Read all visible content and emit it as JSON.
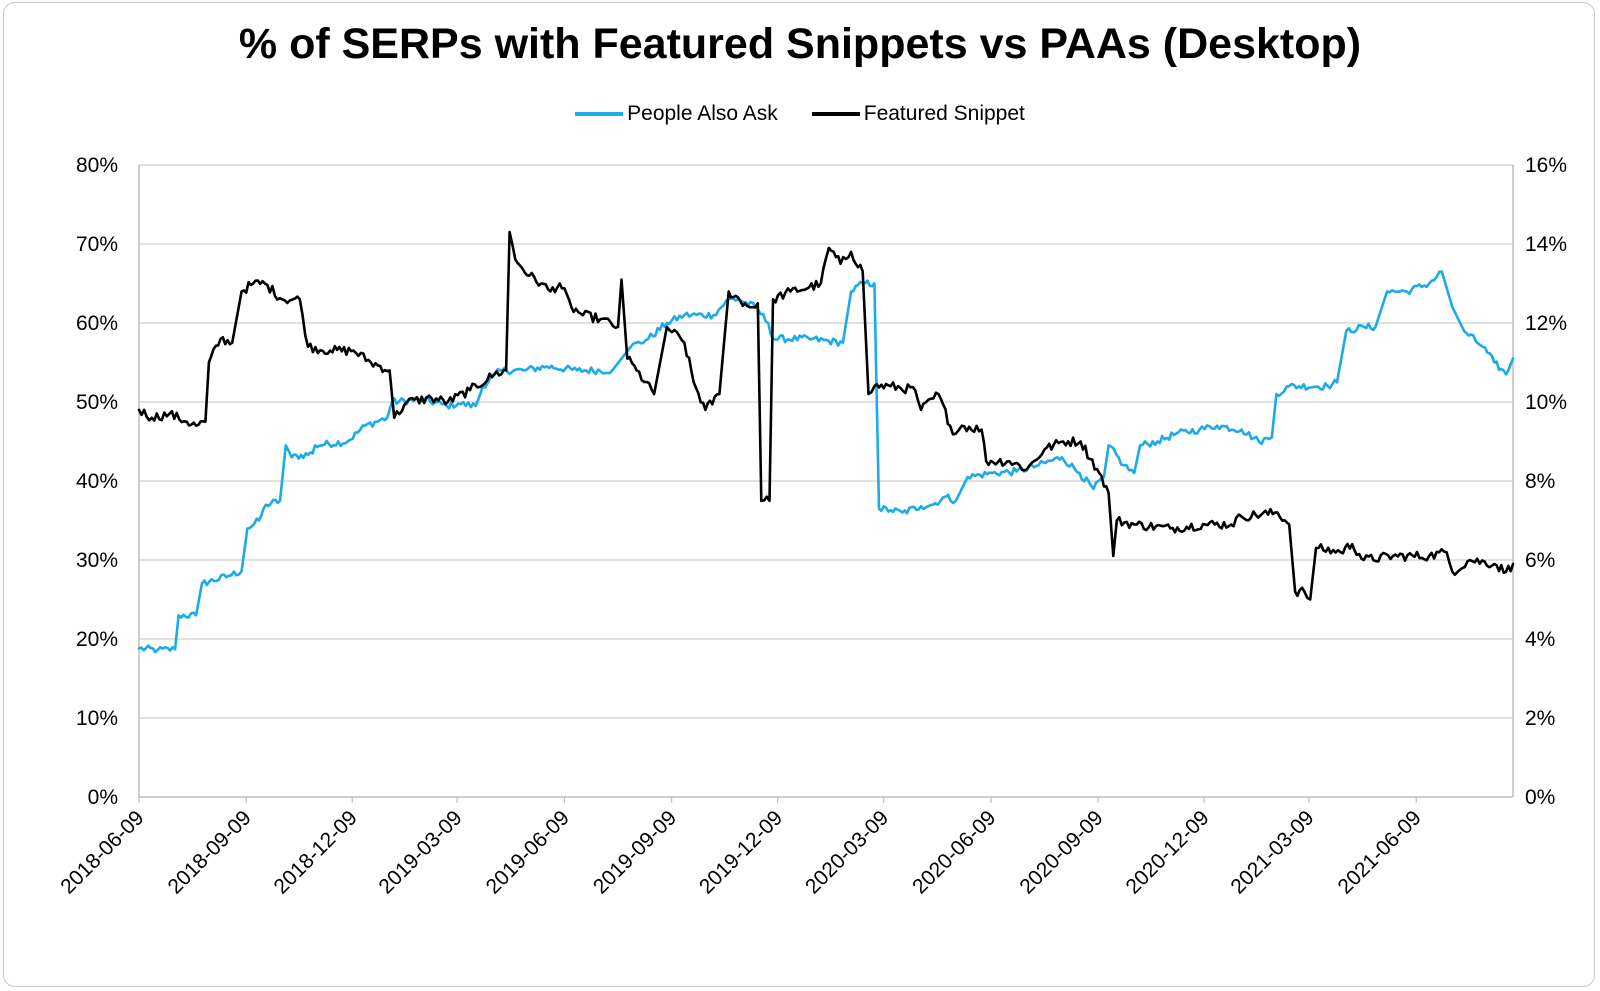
{
  "chart_data": {
    "type": "line",
    "title": "% of SERPs with Featured Snippets vs PAAs (Desktop)",
    "x_start": "2018-06-09",
    "x_end": "2021-08-31",
    "x_tick_labels": [
      "2018-06-09",
      "2018-09-09",
      "2018-12-09",
      "2019-03-09",
      "2019-06-09",
      "2019-09-09",
      "2019-12-09",
      "2020-03-09",
      "2020-06-09",
      "2020-09-09",
      "2020-12-09",
      "2021-03-09",
      "2021-06-09"
    ],
    "y_left": {
      "min": 0,
      "max": 80,
      "step": 10,
      "tick_labels": [
        "0%",
        "10%",
        "20%",
        "30%",
        "40%",
        "50%",
        "60%",
        "70%",
        "80%"
      ]
    },
    "y_right": {
      "min": 0,
      "max": 16,
      "step": 2,
      "tick_labels": [
        "0%",
        "2%",
        "4%",
        "6%",
        "8%",
        "10%",
        "12%",
        "14%",
        "16%"
      ]
    },
    "grid": true,
    "legend_position": "top-center",
    "series": [
      {
        "name": "People Also Ask",
        "axis": "left",
        "color": "#1aabe8",
        "points": [
          [
            "2018-06-09",
            18.8
          ],
          [
            "2018-06-25",
            18.6
          ],
          [
            "2018-07-10",
            18.7
          ],
          [
            "2018-07-13",
            23
          ],
          [
            "2018-07-28",
            23
          ],
          [
            "2018-08-02",
            27
          ],
          [
            "2018-08-25",
            28
          ],
          [
            "2018-09-05",
            28.6
          ],
          [
            "2018-09-10",
            34
          ],
          [
            "2018-09-20",
            35
          ],
          [
            "2018-09-26",
            37
          ],
          [
            "2018-10-08",
            37.5
          ],
          [
            "2018-10-13",
            44.5
          ],
          [
            "2018-10-18",
            43
          ],
          [
            "2018-11-05",
            43.5
          ],
          [
            "2018-11-07",
            44.5
          ],
          [
            "2018-12-05",
            45
          ],
          [
            "2018-12-20",
            47
          ],
          [
            "2019-01-08",
            48
          ],
          [
            "2019-01-12",
            50
          ],
          [
            "2019-02-08",
            50.3
          ],
          [
            "2019-02-28",
            49.5
          ],
          [
            "2019-03-10",
            49.8
          ],
          [
            "2019-03-25",
            49.5
          ],
          [
            "2019-03-31",
            52
          ],
          [
            "2019-04-15",
            54
          ],
          [
            "2019-05-05",
            54
          ],
          [
            "2019-05-25",
            54.5
          ],
          [
            "2019-06-20",
            54
          ],
          [
            "2019-07-20",
            54
          ],
          [
            "2019-08-05",
            57
          ],
          [
            "2019-08-20",
            58
          ],
          [
            "2019-09-05",
            60
          ],
          [
            "2019-09-20",
            61
          ],
          [
            "2019-10-15",
            61
          ],
          [
            "2019-10-28",
            63
          ],
          [
            "2019-11-05",
            63
          ],
          [
            "2019-11-20",
            62
          ],
          [
            "2019-12-01",
            60
          ],
          [
            "2019-12-05",
            58
          ],
          [
            "2020-01-05",
            58
          ],
          [
            "2020-02-03",
            57.5
          ],
          [
            "2020-02-10",
            64
          ],
          [
            "2020-02-20",
            65
          ],
          [
            "2020-03-01",
            65
          ],
          [
            "2020-03-05",
            36.5
          ],
          [
            "2020-03-15",
            36.3
          ],
          [
            "2020-03-25",
            36
          ],
          [
            "2020-04-10",
            36.8
          ],
          [
            "2020-04-20",
            37
          ],
          [
            "2020-05-01",
            38
          ],
          [
            "2020-05-10",
            37.5
          ],
          [
            "2020-05-20",
            40.5
          ],
          [
            "2020-06-10",
            41
          ],
          [
            "2020-07-01",
            41.2
          ],
          [
            "2020-07-20",
            42
          ],
          [
            "2020-08-09",
            43
          ],
          [
            "2020-08-24",
            41
          ],
          [
            "2020-09-05",
            39
          ],
          [
            "2020-09-14",
            40.5
          ],
          [
            "2020-09-18",
            44.5
          ],
          [
            "2020-10-01",
            42
          ],
          [
            "2020-10-10",
            41
          ],
          [
            "2020-10-15",
            44.5
          ],
          [
            "2020-10-30",
            45
          ],
          [
            "2020-11-15",
            46
          ],
          [
            "2020-12-05",
            46.5
          ],
          [
            "2020-12-20",
            47
          ],
          [
            "2021-01-10",
            46.5
          ],
          [
            "2021-01-25",
            45
          ],
          [
            "2021-02-05",
            45.5
          ],
          [
            "2021-02-09",
            51
          ],
          [
            "2021-02-20",
            52
          ],
          [
            "2021-03-25",
            52
          ],
          [
            "2021-04-02",
            52.5
          ],
          [
            "2021-04-10",
            59
          ],
          [
            "2021-04-25",
            59.5
          ],
          [
            "2021-05-05",
            59.5
          ],
          [
            "2021-05-15",
            64
          ],
          [
            "2021-06-01",
            64
          ],
          [
            "2021-06-20",
            65
          ],
          [
            "2021-07-01",
            66.5
          ],
          [
            "2021-07-10",
            62
          ],
          [
            "2021-07-20",
            59
          ],
          [
            "2021-08-05",
            57
          ],
          [
            "2021-08-15",
            55
          ],
          [
            "2021-08-25",
            53.5
          ],
          [
            "2021-08-31",
            55.5
          ]
        ]
      },
      {
        "name": "Featured Snippet",
        "axis": "right",
        "color": "#000000",
        "points": [
          [
            "2018-06-09",
            9.8
          ],
          [
            "2018-06-20",
            9.6
          ],
          [
            "2018-07-05",
            9.7
          ],
          [
            "2018-07-20",
            9.5
          ],
          [
            "2018-07-28",
            9.4
          ],
          [
            "2018-08-05",
            9.5
          ],
          [
            "2018-08-08",
            11
          ],
          [
            "2018-08-18",
            11.6
          ],
          [
            "2018-08-28",
            11.5
          ],
          [
            "2018-09-05",
            12.8
          ],
          [
            "2018-09-15",
            13
          ],
          [
            "2018-09-25",
            13
          ],
          [
            "2018-10-10",
            12.6
          ],
          [
            "2018-10-25",
            12.6
          ],
          [
            "2018-11-01",
            11.4
          ],
          [
            "2018-11-20",
            11.3
          ],
          [
            "2018-12-10",
            11.3
          ],
          [
            "2018-12-25",
            11
          ],
          [
            "2019-01-10",
            10.8
          ],
          [
            "2019-01-14",
            9.6
          ],
          [
            "2019-01-25",
            10
          ],
          [
            "2019-02-15",
            10.1
          ],
          [
            "2019-03-01",
            10
          ],
          [
            "2019-03-20",
            10.3
          ],
          [
            "2019-04-10",
            10.7
          ],
          [
            "2019-04-20",
            10.8
          ],
          [
            "2019-04-23",
            14.3
          ],
          [
            "2019-04-28",
            13.6
          ],
          [
            "2019-05-10",
            13.2
          ],
          [
            "2019-05-20",
            13
          ],
          [
            "2019-05-28",
            12.8
          ],
          [
            "2019-06-05",
            13
          ],
          [
            "2019-06-15",
            12.4
          ],
          [
            "2019-06-25",
            12.2
          ],
          [
            "2019-07-10",
            12.1
          ],
          [
            "2019-07-25",
            11.9
          ],
          [
            "2019-07-28",
            13.1
          ],
          [
            "2019-08-02",
            11.1
          ],
          [
            "2019-08-10",
            10.8
          ],
          [
            "2019-08-25",
            10.2
          ],
          [
            "2019-09-05",
            11.9
          ],
          [
            "2019-09-20",
            11.5
          ],
          [
            "2019-09-28",
            10.5
          ],
          [
            "2019-10-08",
            9.8
          ],
          [
            "2019-10-20",
            10.2
          ],
          [
            "2019-10-28",
            12.8
          ],
          [
            "2019-11-15",
            12.4
          ],
          [
            "2019-11-22",
            12.5
          ],
          [
            "2019-11-25",
            7.5
          ],
          [
            "2019-12-02",
            7.5
          ],
          [
            "2019-12-05",
            12.6
          ],
          [
            "2019-12-20",
            12.8
          ],
          [
            "2020-01-05",
            12.9
          ],
          [
            "2020-01-15",
            13
          ],
          [
            "2020-01-22",
            13.9
          ],
          [
            "2020-02-01",
            13.5
          ],
          [
            "2020-02-10",
            13.8
          ],
          [
            "2020-02-20",
            13.3
          ],
          [
            "2020-02-25",
            10.2
          ],
          [
            "2020-03-01",
            10.4
          ],
          [
            "2020-03-15",
            10.4
          ],
          [
            "2020-04-05",
            10.3
          ],
          [
            "2020-04-10",
            9.8
          ],
          [
            "2020-04-25",
            10.2
          ],
          [
            "2020-05-05",
            9.4
          ],
          [
            "2020-05-10",
            9.2
          ],
          [
            "2020-05-15",
            9.4
          ],
          [
            "2020-06-01",
            9.3
          ],
          [
            "2020-06-05",
            8.5
          ],
          [
            "2020-06-25",
            8.5
          ],
          [
            "2020-07-10",
            8.3
          ],
          [
            "2020-07-25",
            8.8
          ],
          [
            "2020-08-10",
            9
          ],
          [
            "2020-08-25",
            9
          ],
          [
            "2020-09-08",
            8.3
          ],
          [
            "2020-09-18",
            7.7
          ],
          [
            "2020-09-22",
            6.1
          ],
          [
            "2020-09-25",
            7
          ],
          [
            "2020-10-10",
            6.9
          ],
          [
            "2020-11-10",
            6.8
          ],
          [
            "2020-12-10",
            6.9
          ],
          [
            "2021-01-01",
            6.9
          ],
          [
            "2021-01-10",
            7.1
          ],
          [
            "2021-02-10",
            7.2
          ],
          [
            "2021-02-20",
            6.9
          ],
          [
            "2021-02-25",
            5.2
          ],
          [
            "2021-03-05",
            5.2
          ],
          [
            "2021-03-10",
            5
          ],
          [
            "2021-03-15",
            6.3
          ],
          [
            "2021-04-05",
            6.2
          ],
          [
            "2021-04-15",
            6.4
          ],
          [
            "2021-04-25",
            6
          ],
          [
            "2021-05-20",
            6.1
          ],
          [
            "2021-06-20",
            6.1
          ],
          [
            "2021-07-05",
            6.2
          ],
          [
            "2021-07-10",
            5.7
          ],
          [
            "2021-07-25",
            6
          ],
          [
            "2021-08-15",
            5.9
          ],
          [
            "2021-08-25",
            5.7
          ],
          [
            "2021-08-31",
            5.9
          ]
        ]
      }
    ]
  }
}
